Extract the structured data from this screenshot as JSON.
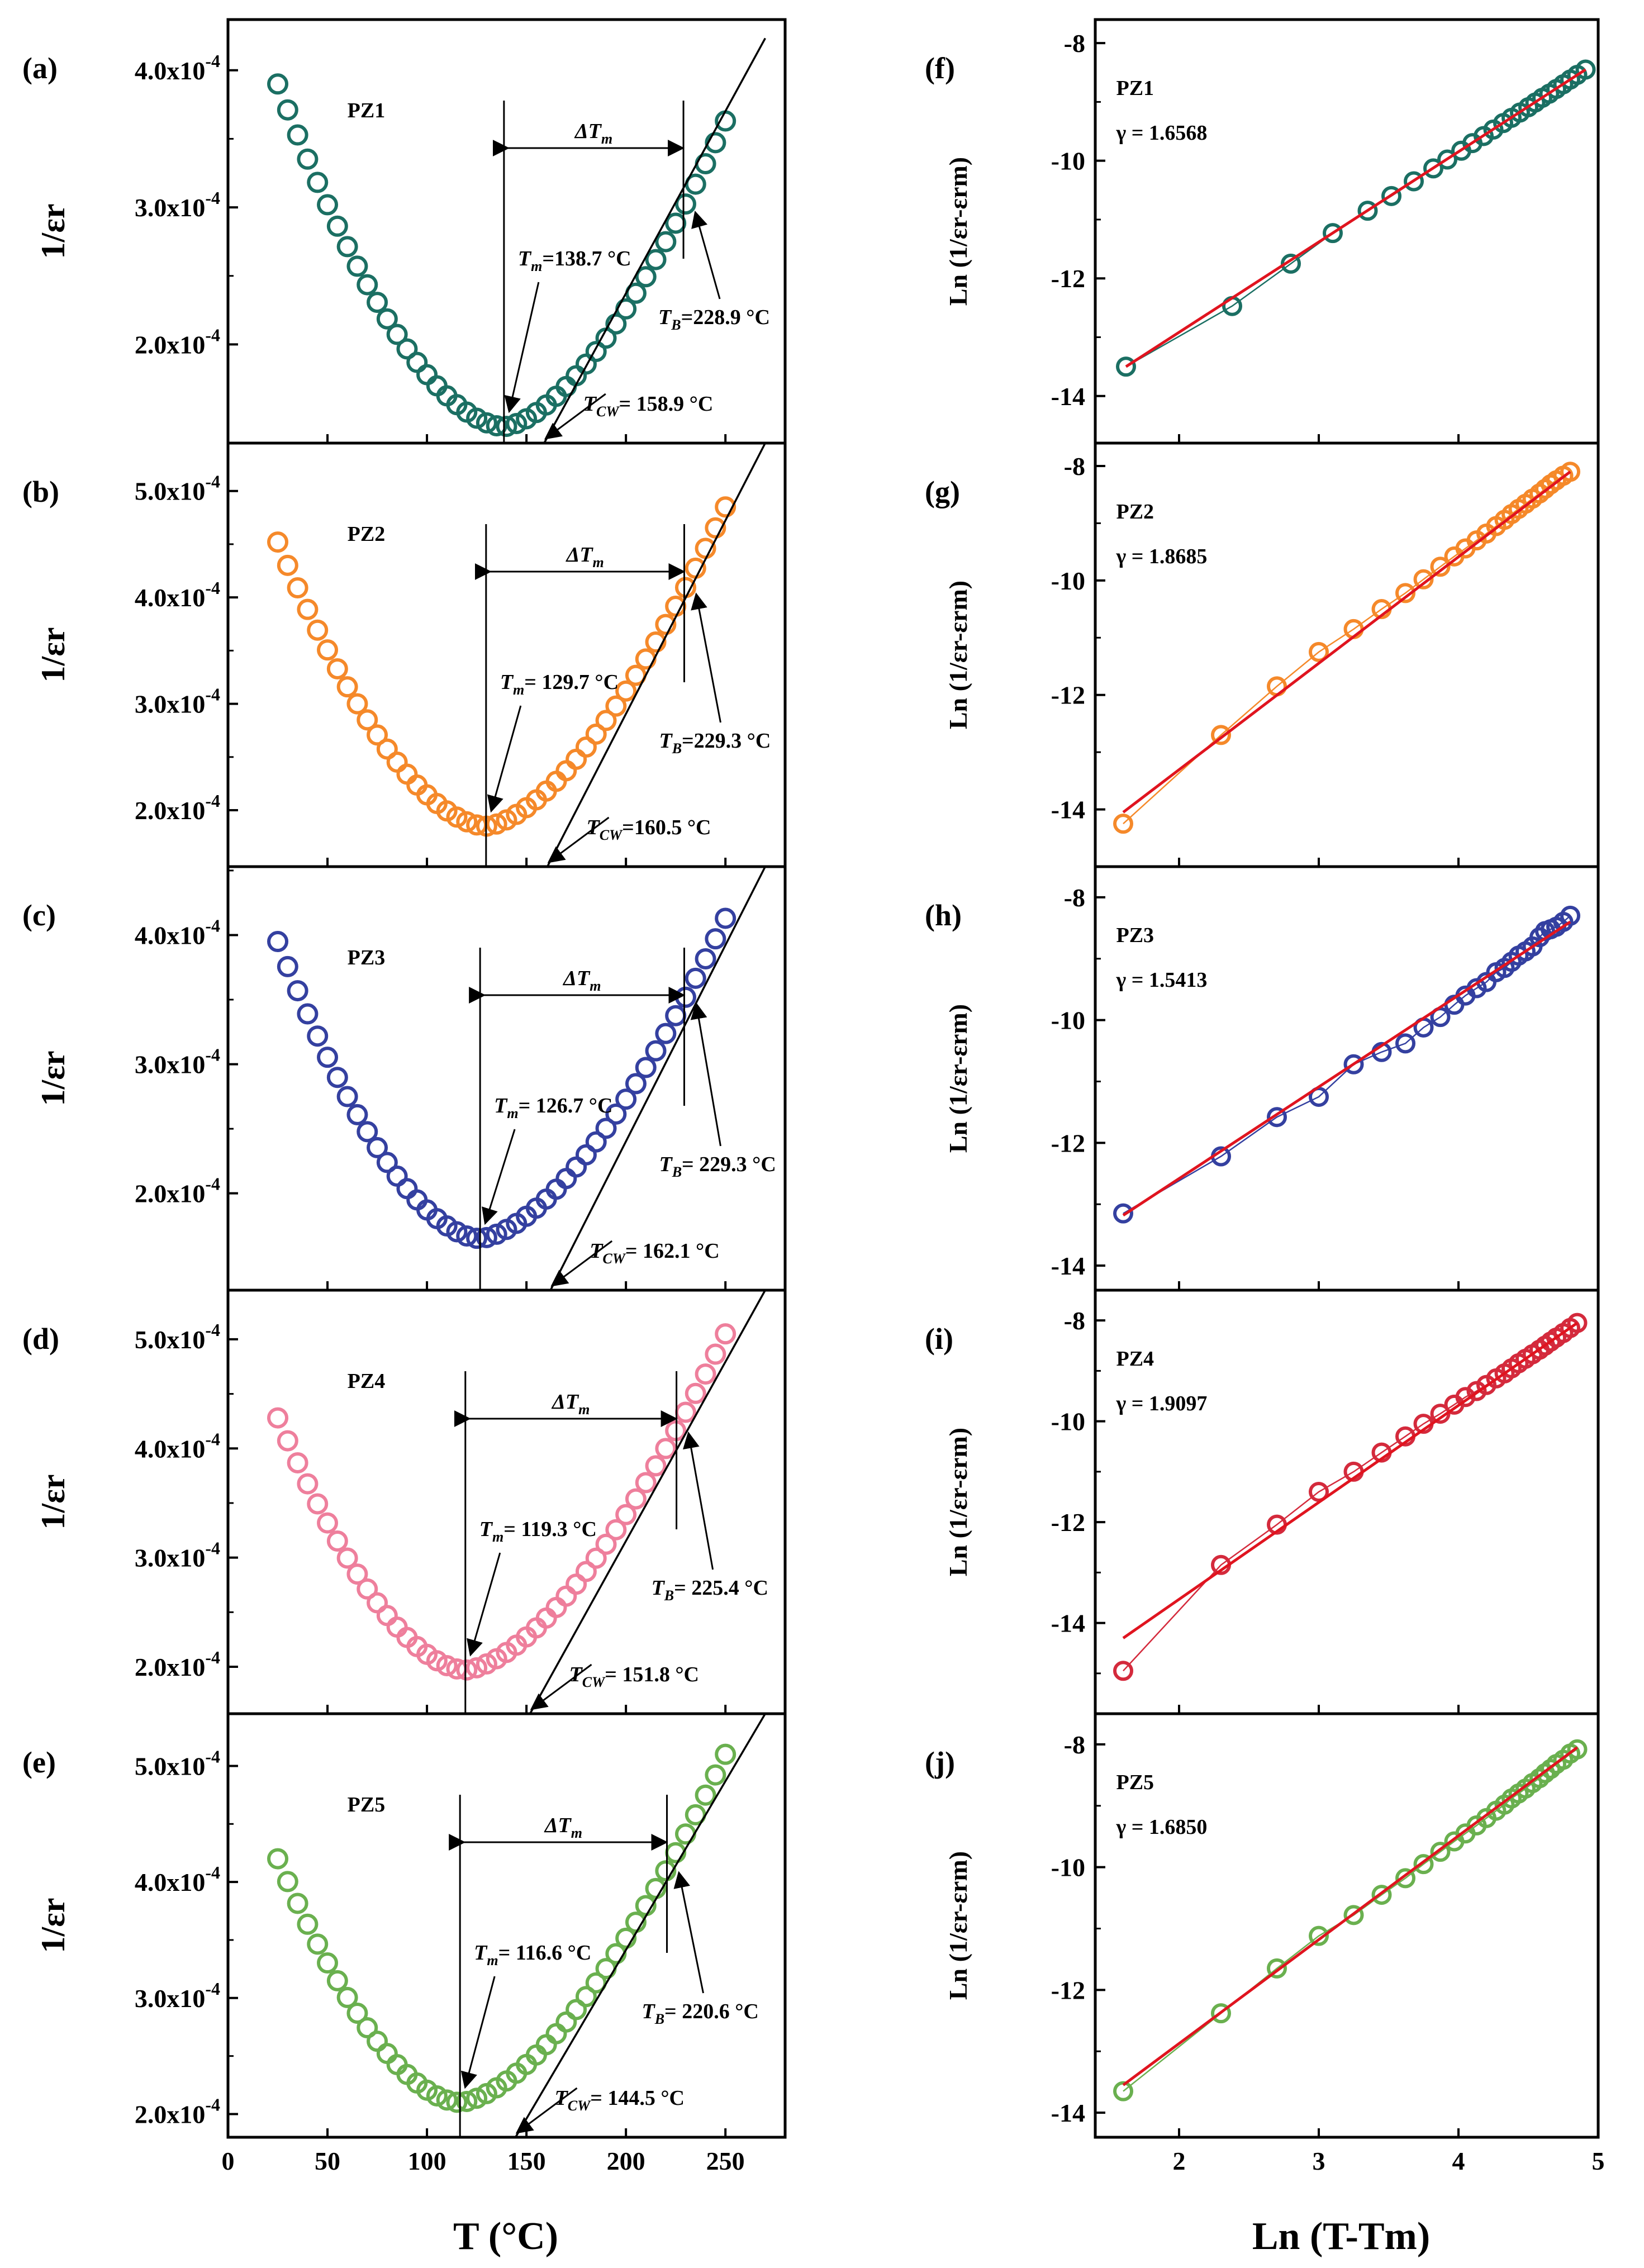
{
  "x_label_left": "T (°C)",
  "x_label_right": "Ln (T-Tm)",
  "y_label_left": "1/εr",
  "y_label_right": "Ln (1/εr-εrm)",
  "chart_data": [
    {
      "panel": "(a)",
      "sample": "PZ1",
      "type": "scatter",
      "color": "#1b6f63",
      "xlim": [
        0,
        280
      ],
      "ylim": [
        0.000128,
        0.000437
      ],
      "yticks": [
        "2.0x10-4",
        "3.0x10-4",
        "4.0x10-4"
      ],
      "xticks": [
        "0",
        "50",
        "100",
        "150",
        "200",
        "250"
      ],
      "Tm": 138.7,
      "TB": 228.9,
      "TCW": 158.9,
      "annotations": {
        "Tm": "Tm=138.7 °C",
        "TB": "TB=228.9 °C",
        "TCW": "TCW= 158.9 °C",
        "dT": "ΔTm"
      },
      "curve": {
        "x0": 25,
        "y0": 0.00039,
        "xmin": 138.7,
        "ymin": 0.00014,
        "x1": 250,
        "y1": 0.000363
      }
    },
    {
      "panel": "(b)",
      "sample": "PZ2",
      "type": "scatter",
      "color": "#f5892a",
      "xlim": [
        0,
        280
      ],
      "ylim": [
        0.000147,
        0.000545
      ],
      "yticks": [
        "2.0x10-4",
        "3.0x10-4",
        "4.0x10-4",
        "5.0x10-4"
      ],
      "xticks": [
        "0",
        "50",
        "100",
        "150",
        "200",
        "250"
      ],
      "Tm": 129.7,
      "TB": 229.3,
      "TCW": 160.5,
      "annotations": {
        "Tm": "Tm= 129.7 °C",
        "TB": "TB=229.3 °C",
        "TCW": "TCW=160.5 °C",
        "dT": "ΔTm"
      },
      "curve": {
        "x0": 25,
        "y0": 0.000452,
        "xmin": 129.7,
        "ymin": 0.000185,
        "x1": 250,
        "y1": 0.000485
      }
    },
    {
      "panel": "(c)",
      "sample": "PZ3",
      "type": "scatter",
      "color": "#3440a0",
      "xlim": [
        0,
        280
      ],
      "ylim": [
        0.000125,
        0.000453
      ],
      "yticks": [
        "2.0x10-4",
        "3.0x10-4",
        "4.0x10-4"
      ],
      "xticks": [
        "0",
        "50",
        "100",
        "150",
        "200",
        "250"
      ],
      "Tm": 126.7,
      "TB": 229.3,
      "TCW": 162.1,
      "annotations": {
        "Tm": "Tm= 126.7 °C",
        "TB": "TB= 229.3 °C",
        "TCW": "TCW= 162.1 °C",
        "dT": "ΔTm"
      },
      "curve": {
        "x0": 25,
        "y0": 0.000395,
        "xmin": 126.7,
        "ymin": 0.000165,
        "x1": 250,
        "y1": 0.000413
      }
    },
    {
      "panel": "(d)",
      "sample": "PZ4",
      "type": "scatter",
      "color": "#ee7f9c",
      "xlim": [
        0,
        280
      ],
      "ylim": [
        0.000157,
        0.000545
      ],
      "yticks": [
        "2.0x10-4",
        "3.0x10-4",
        "4.0x10-4",
        "5.0x10-4"
      ],
      "xticks": [
        "0",
        "50",
        "100",
        "150",
        "200",
        "250"
      ],
      "Tm": 119.3,
      "TB": 225.4,
      "TCW": 151.8,
      "annotations": {
        "Tm": "Tm= 119.3 °C",
        "TB": "TB= 225.4 °C",
        "TCW": "TCW= 151.8 °C",
        "dT": "ΔTm"
      },
      "curve": {
        "x0": 25,
        "y0": 0.000428,
        "xmin": 119.3,
        "ymin": 0.000197,
        "x1": 250,
        "y1": 0.000505
      }
    },
    {
      "panel": "(e)",
      "sample": "PZ5",
      "type": "scatter",
      "color": "#6ab04f",
      "xlim": [
        0,
        280
      ],
      "ylim": [
        0.00018,
        0.000545
      ],
      "yticks": [
        "2.0x10-4",
        "3.0x10-4",
        "4.0x10-4",
        "5.0x10-4"
      ],
      "xticks": [
        "0",
        "50",
        "100",
        "150",
        "200",
        "250"
      ],
      "Tm": 116.6,
      "TB": 220.6,
      "TCW": 144.5,
      "annotations": {
        "Tm": "Tm= 116.6 °C",
        "TB": "TB= 220.6 °C",
        "TCW": "TCW= 144.5 °C",
        "dT": "ΔTm"
      },
      "curve": {
        "x0": 25,
        "y0": 0.00042,
        "xmin": 116.6,
        "ymin": 0.00021,
        "x1": 250,
        "y1": 0.00051
      }
    },
    {
      "panel": "(f)",
      "sample": "PZ1",
      "gamma": "γ = 1.6568",
      "type": "scatter",
      "color": "#1b6f63",
      "xlim": [
        1.4,
        5.0
      ],
      "ylim": [
        -14.8,
        -7.6
      ],
      "yticks": [
        "-8",
        "-10",
        "-12",
        "-14"
      ],
      "fit": {
        "x0": 1.62,
        "y0": -13.5,
        "x1": 4.91,
        "y1": -8.45
      },
      "x": [
        1.62,
        2.38,
        2.8,
        3.1,
        3.35,
        3.52,
        3.68,
        3.82,
        3.92,
        4.02,
        4.1,
        4.18,
        4.25,
        4.32,
        4.38,
        4.44,
        4.5,
        4.55,
        4.6,
        4.65,
        4.7,
        4.75,
        4.8,
        4.85,
        4.91
      ],
      "y": [
        -13.5,
        -12.47,
        -11.75,
        -11.23,
        -10.85,
        -10.6,
        -10.35,
        -10.13,
        -9.98,
        -9.83,
        -9.7,
        -9.58,
        -9.47,
        -9.36,
        -9.27,
        -9.18,
        -9.09,
        -9.01,
        -8.93,
        -8.86,
        -8.78,
        -8.7,
        -8.62,
        -8.54,
        -8.45
      ]
    },
    {
      "panel": "(g)",
      "sample": "PZ2",
      "gamma": "γ = 1.8685",
      "type": "scatter",
      "color": "#f5892a",
      "xlim": [
        1.4,
        5.0
      ],
      "ylim": [
        -15.0,
        -7.6
      ],
      "yticks": [
        "-8",
        "-10",
        "-12",
        "-14"
      ],
      "fit": {
        "x0": 1.6,
        "y0": -14.05,
        "x1": 4.8,
        "y1": -8.1
      },
      "x": [
        1.6,
        2.3,
        2.7,
        3.0,
        3.25,
        3.45,
        3.62,
        3.75,
        3.87,
        3.97,
        4.05,
        4.13,
        4.2,
        4.27,
        4.33,
        4.38,
        4.43,
        4.48,
        4.53,
        4.58,
        4.62,
        4.66,
        4.7,
        4.75,
        4.8
      ],
      "y": [
        -14.25,
        -12.7,
        -11.85,
        -11.25,
        -10.85,
        -10.5,
        -10.22,
        -9.98,
        -9.76,
        -9.58,
        -9.44,
        -9.3,
        -9.18,
        -9.05,
        -8.94,
        -8.84,
        -8.75,
        -8.66,
        -8.57,
        -8.48,
        -8.4,
        -8.32,
        -8.25,
        -8.17,
        -8.1
      ]
    },
    {
      "panel": "(h)",
      "sample": "PZ3",
      "gamma": "γ = 1.5413",
      "type": "scatter",
      "color": "#3440a0",
      "xlim": [
        1.4,
        5.0
      ],
      "ylim": [
        -14.4,
        -7.5
      ],
      "yticks": [
        "-8",
        "-10",
        "-12",
        "-14"
      ],
      "fit": {
        "x0": 1.6,
        "y0": -13.18,
        "x1": 4.8,
        "y1": -8.4
      },
      "x": [
        1.6,
        2.3,
        2.7,
        3.0,
        3.25,
        3.45,
        3.62,
        3.75,
        3.87,
        3.97,
        4.05,
        4.13,
        4.2,
        4.27,
        4.33,
        4.38,
        4.43,
        4.48,
        4.53,
        4.58,
        4.62,
        4.66,
        4.7,
        4.75,
        4.8
      ],
      "y": [
        -13.15,
        -12.22,
        -11.58,
        -11.25,
        -10.72,
        -10.52,
        -10.38,
        -10.12,
        -9.95,
        -9.75,
        -9.6,
        -9.48,
        -9.38,
        -9.22,
        -9.15,
        -9.05,
        -8.95,
        -8.88,
        -8.8,
        -8.65,
        -8.55,
        -8.52,
        -8.48,
        -8.4,
        -8.3
      ]
    },
    {
      "panel": "(i)",
      "sample": "PZ4",
      "gamma": "γ = 1.9097",
      "type": "scatter",
      "color": "#d42a3c",
      "xlim": [
        1.4,
        5.0
      ],
      "ylim": [
        -15.8,
        -7.4
      ],
      "yticks": [
        "-8",
        "-10",
        "-12",
        "-14"
      ],
      "fit": {
        "x0": 1.6,
        "y0": -14.3,
        "x1": 4.85,
        "y1": -8.05
      },
      "x": [
        1.6,
        2.3,
        2.7,
        3.0,
        3.25,
        3.45,
        3.62,
        3.75,
        3.87,
        3.97,
        4.05,
        4.13,
        4.2,
        4.27,
        4.33,
        4.38,
        4.43,
        4.48,
        4.53,
        4.58,
        4.62,
        4.66,
        4.7,
        4.75,
        4.8,
        4.85
      ],
      "y": [
        -14.95,
        -12.85,
        -12.05,
        -11.4,
        -11.0,
        -10.62,
        -10.3,
        -10.05,
        -9.85,
        -9.67,
        -9.52,
        -9.4,
        -9.28,
        -9.15,
        -9.05,
        -8.95,
        -8.85,
        -8.76,
        -8.67,
        -8.58,
        -8.5,
        -8.42,
        -8.34,
        -8.25,
        -8.15,
        -8.05
      ]
    },
    {
      "panel": "(j)",
      "sample": "PZ5",
      "gamma": "γ = 1.6850",
      "type": "scatter",
      "color": "#6ab04f",
      "xlim": [
        1.4,
        5.0
      ],
      "ylim": [
        -14.4,
        -7.5
      ],
      "yticks": [
        "-8",
        "-10",
        "-12",
        "-14"
      ],
      "xticks": [
        "2",
        "3",
        "4",
        "5"
      ],
      "fit": {
        "x0": 1.6,
        "y0": -13.55,
        "x1": 4.85,
        "y1": -8.05
      },
      "x": [
        1.6,
        2.3,
        2.7,
        3.0,
        3.25,
        3.45,
        3.62,
        3.75,
        3.87,
        3.97,
        4.05,
        4.13,
        4.2,
        4.27,
        4.33,
        4.38,
        4.43,
        4.48,
        4.53,
        4.58,
        4.62,
        4.66,
        4.7,
        4.75,
        4.8,
        4.85
      ],
      "y": [
        -13.65,
        -12.38,
        -11.65,
        -11.12,
        -10.78,
        -10.45,
        -10.18,
        -9.95,
        -9.75,
        -9.58,
        -9.45,
        -9.32,
        -9.2,
        -9.08,
        -8.98,
        -8.88,
        -8.8,
        -8.72,
        -8.63,
        -8.55,
        -8.47,
        -8.4,
        -8.32,
        -8.25,
        -8.15,
        -8.08
      ]
    }
  ]
}
